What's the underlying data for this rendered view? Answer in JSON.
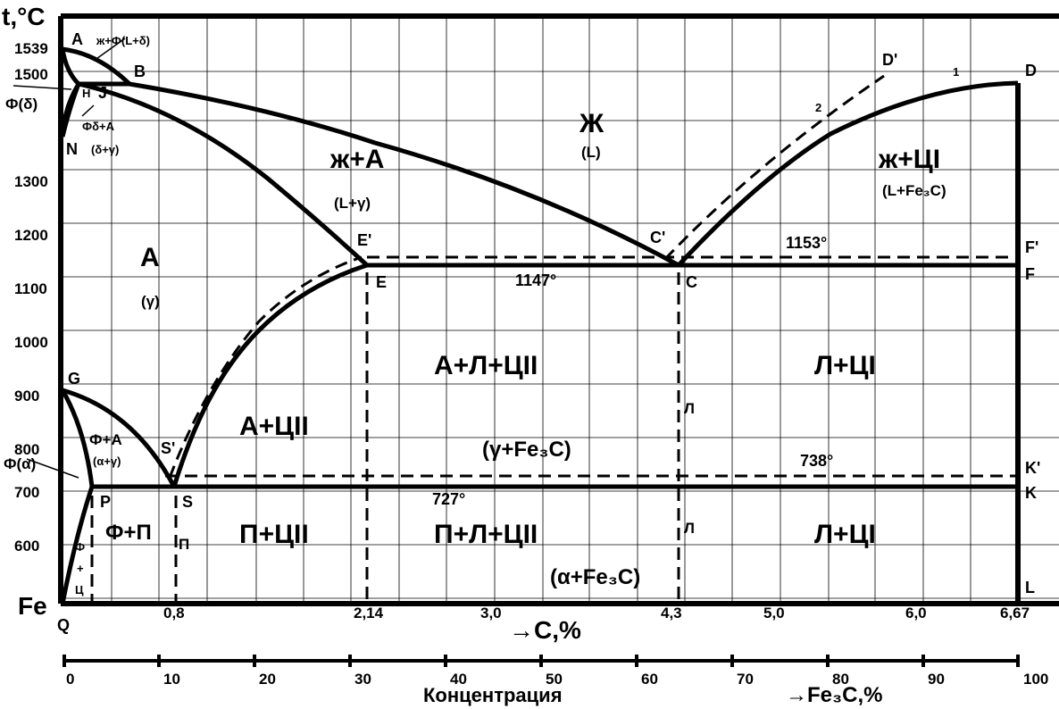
{
  "diagram": {
    "y_axis_label": "t,°C",
    "y_ticks": [
      "1539",
      "1500",
      "1300",
      "1200",
      "1100",
      "1000",
      "900",
      "800",
      "700",
      "600"
    ],
    "x_ticks_c": [
      "0,8",
      "2,14",
      "3,0",
      "4,3",
      "5,0",
      "6,0",
      "6,67"
    ],
    "x_axis_label": "→С,%",
    "origin_label": "Fe",
    "conc_ticks": [
      "0",
      "10",
      "20",
      "30",
      "40",
      "50",
      "60",
      "70",
      "80",
      "90",
      "100"
    ],
    "conc_label": "Концентрация",
    "fe3c_label": "→Fe₃C,%",
    "points": {
      "A": "A",
      "B": "B",
      "H": "H",
      "J": "J",
      "N": "N",
      "D": "D",
      "Dp": "D'",
      "Cp": "C'",
      "C": "C",
      "Ep": "E'",
      "E": "E",
      "Fp": "F'",
      "F": "F",
      "G": "G",
      "Sp": "S'",
      "S": "S",
      "P": "P",
      "Kp": "K'",
      "K": "K",
      "L": "L",
      "Q": "Q",
      "one": "1",
      "two": "2"
    },
    "temps": {
      "t1153": "1153°",
      "t1147": "1147°",
      "t738": "738°",
      "t727": "727°"
    },
    "phases": {
      "liq": "Ж",
      "liq_en": "(L)",
      "liq_aus": "ж+А",
      "liq_aus_en": "(L+γ)",
      "liq_cem": "ж+ЦI",
      "liq_cem_en": "(L+Fe₃C)",
      "aus": "А",
      "aus_en": "(γ)",
      "aus_led_cem": "А+Л+ЦII",
      "led_cem_upper": "Л+ЦI",
      "aus_cem": "А+ЦII",
      "gamma_fe3c": "(γ+Fe₃C)",
      "fer_aus": "Ф+А",
      "fer_aus_en": "(α+γ)",
      "fer_alpha": "Ф(α)",
      "fer_delta": "Ф(δ)",
      "liq_fer": "ж+Ф(L+δ)",
      "fdelta_aus": "Фδ+А",
      "fdelta_aus_en": "(δ+γ)",
      "fer_pearl": "Ф+П",
      "pearl_cem": "П+ЦII",
      "pearl_led_cem": "П+Л+ЦII",
      "led_cem_lower": "Л+ЦI",
      "alpha_fe3c": "(α+Fe₃C)",
      "fer_cem_v1": "Ф",
      "fer_cem_v2": "+",
      "fer_cem_v3": "Ц",
      "pi_small": "П",
      "l_small_1": "Л",
      "l_small_2": "Л"
    }
  }
}
